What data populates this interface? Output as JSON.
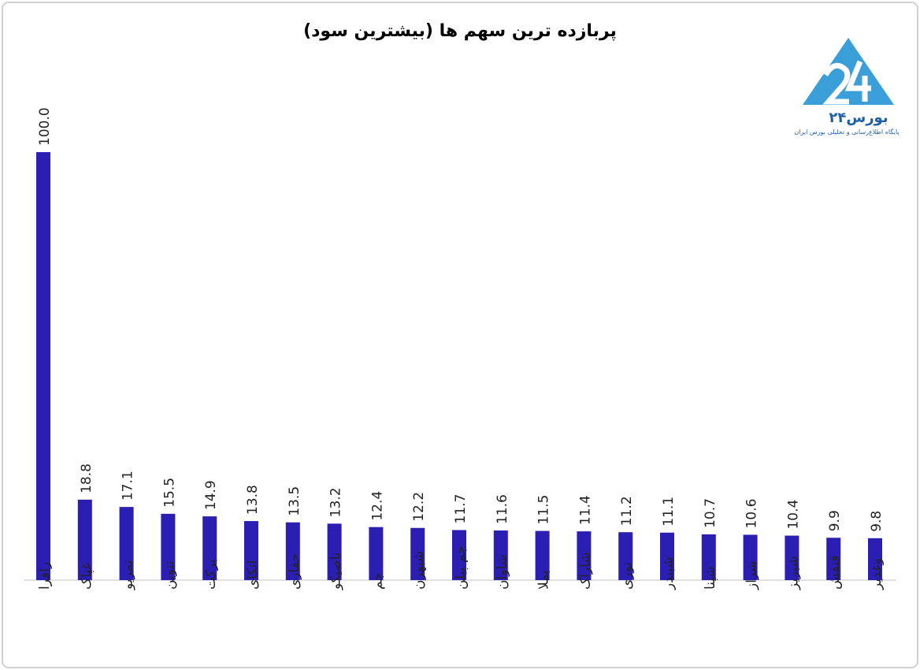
{
  "chart_data": {
    "type": "bar",
    "title": "پربازده ترین سهم ها (بیشترین سود)",
    "categories": [
      "رافرا",
      "غپاک",
      "تمریو",
      "تنوین",
      "برکت",
      "اتکای",
      "حفاری",
      "ناصیکو",
      "جم",
      "شبهرن",
      "جم پیلن",
      "شاوان",
      "بملا",
      "شاراک",
      "نوری",
      "شبندر",
      "شپنا",
      "شراز",
      "شبریز",
      "قنقش",
      "وغدیر"
    ],
    "values": [
      100.0,
      18.8,
      17.1,
      15.5,
      14.9,
      13.8,
      13.5,
      13.2,
      12.4,
      12.2,
      11.7,
      11.6,
      11.5,
      11.4,
      11.2,
      11.1,
      10.7,
      10.6,
      10.4,
      9.9,
      9.8
    ],
    "value_labels": [
      "100.0",
      "18.8",
      "17.1",
      "15.5",
      "14.9",
      "13.8",
      "13.5",
      "13.2",
      "12.4",
      "12.2",
      "11.7",
      "11.6",
      "11.5",
      "11.4",
      "11.2",
      "11.1",
      "10.7",
      "10.6",
      "10.4",
      "9.9",
      "9.8"
    ],
    "color": "#2b1fb3"
  },
  "logo": {
    "name": "بورس۲۴",
    "tagline": "پایگاه اطلاع‌رسانی و تحلیلی بورس ایران"
  }
}
